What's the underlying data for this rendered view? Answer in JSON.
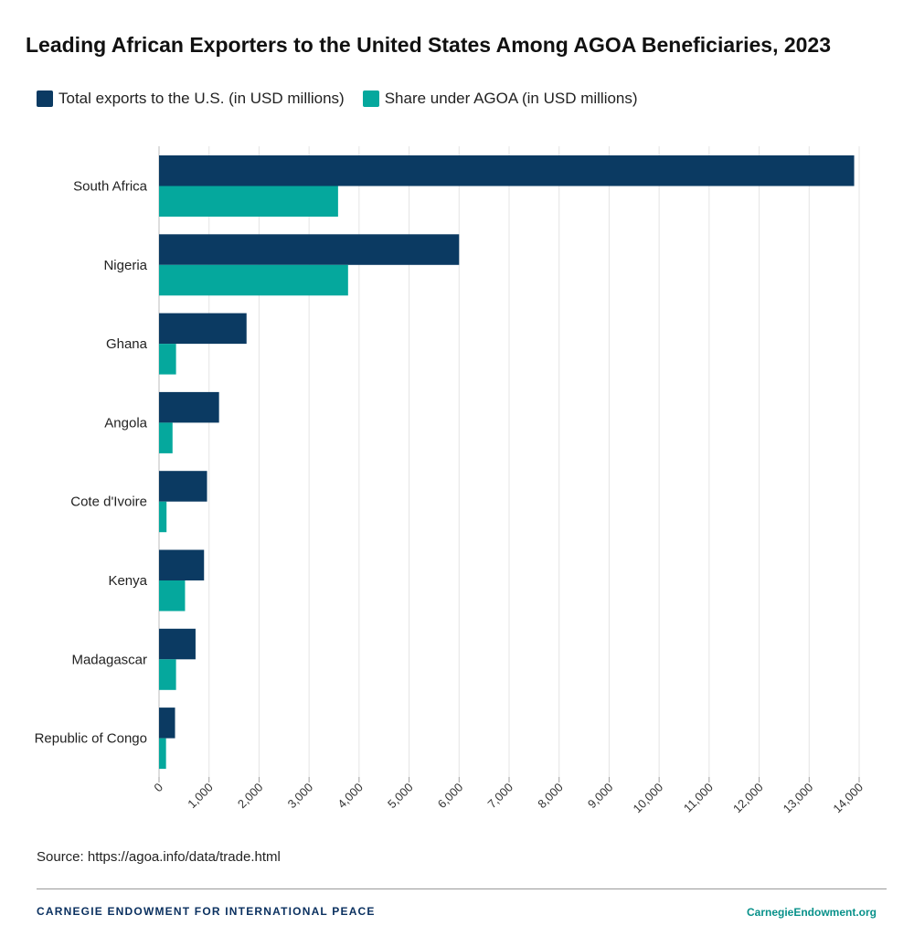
{
  "chart_data": {
    "type": "bar",
    "orientation": "horizontal",
    "title": "Leading African Exporters to the United States Among AGOA Beneficiaries, 2023",
    "categories": [
      "South Africa",
      "Nigeria",
      "Ghana",
      "Angola",
      "Cote d'Ivoire",
      "Kenya",
      "Madagascar",
      "Republic of Congo"
    ],
    "series": [
      {
        "name": "Total exports to the U.S. (in USD millions)",
        "color": "#0b3a62",
        "values": [
          13900,
          6000,
          1750,
          1200,
          960,
          900,
          730,
          320
        ]
      },
      {
        "name": "Share under AGOA (in USD millions)",
        "color": "#05a89d",
        "values": [
          3580,
          3780,
          340,
          270,
          150,
          520,
          340,
          140
        ]
      }
    ],
    "xlim": [
      0,
      14000
    ],
    "xticks": [
      "0",
      "1,000",
      "2,000",
      "3,000",
      "4,000",
      "5,000",
      "6,000",
      "7,000",
      "8,000",
      "9,000",
      "10,000",
      "11,000",
      "12,000",
      "13,000",
      "14,000"
    ],
    "grid": true,
    "legend_position": "top-left"
  },
  "source": "Source: https://agoa.info/data/trade.html",
  "footer": {
    "organization": "CARNEGIE ENDOWMENT FOR INTERNATIONAL PEACE",
    "website": "CarnegieEndowment.org"
  }
}
